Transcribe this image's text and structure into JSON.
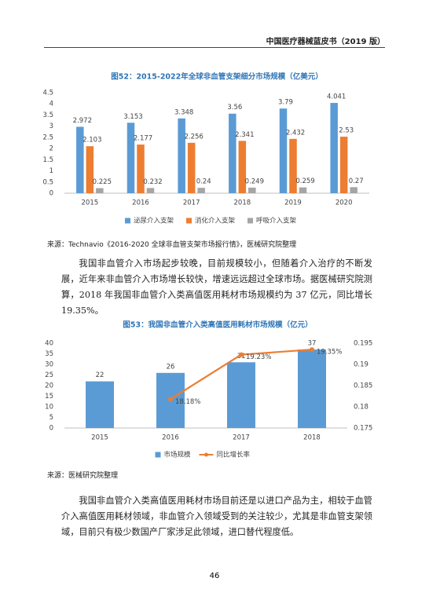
{
  "header": "中国医疗器械蓝皮书（2019 版）",
  "chart_data": [
    {
      "type": "bar",
      "title": "图52：2015-2022年全球非血管支架细分市场规模（亿美元）",
      "categories": [
        "2015",
        "2016",
        "2017",
        "2018",
        "2019",
        "2020"
      ],
      "series": [
        {
          "name": "泌尿介入支架",
          "color": "#5b9bd5",
          "values": [
            2.972,
            3.153,
            3.348,
            3.56,
            3.79,
            4.041
          ]
        },
        {
          "name": "消化介入支架",
          "color": "#ed7d31",
          "values": [
            2.103,
            2.177,
            2.256,
            2.341,
            2.432,
            2.53
          ]
        },
        {
          "name": "呼吸介入支架",
          "color": "#a5a5a5",
          "values": [
            0.225,
            0.232,
            0.24,
            0.249,
            0.259,
            0.27
          ]
        }
      ],
      "ylim": [
        0,
        4.5
      ],
      "yticks": [
        0,
        0.5,
        1,
        1.5,
        2,
        2.5,
        3,
        3.5,
        4,
        4.5
      ],
      "grid": false,
      "legend": "bottom"
    },
    {
      "type": "combo",
      "title": "图53：我国非血管介入类高值医用耗材市场规模（亿元）",
      "categories": [
        "2015",
        "2016",
        "2017",
        "2018"
      ],
      "series": [
        {
          "name": "市场规模",
          "color": "#5b9bd5",
          "values": [
            22,
            26,
            31,
            37
          ]
        },
        {
          "name": "同比增长率",
          "color": "#ed7d31",
          "axis": "y2",
          "values": [
            null,
            0.1818,
            0.1923,
            0.1935
          ],
          "value_labels": [
            null,
            "18.18%",
            "19.23%",
            "19.35%"
          ]
        }
      ],
      "ylim": [
        0,
        40
      ],
      "yticks": [
        0,
        5,
        10,
        15,
        20,
        25,
        30,
        35,
        40
      ],
      "y2lim": [
        0.175,
        0.195
      ],
      "y2ticks": [
        0.175,
        0.18,
        0.185,
        0.19,
        0.195
      ],
      "grid": false,
      "legend": "bottom"
    }
  ],
  "sources": [
    "来源：Technavio《2016-2020 全球非血管支架市场报行情》，医械研究院整理",
    "来源：医械研究院整理"
  ],
  "paragraphs": [
    "我国非血管介入市场起步较晚，目前规模较小，但随着介入治疗的不断发展，近年来非血管介入市场增长较快，增速远远超过全球市场。据医械研究院测算，2018 年我国非血管介入类高值医用耗材市场规模约为 37 亿元，同比增长 19.35%。",
    "我国非血管介入类高值医用耗材市场目前还是以进口产品为主，相较于血管介入高值医用耗材领域，非血管介入领域受到的关注较少，尤其是非血管支架领域，目前只有极少数国产厂家涉足此领域，进口替代程度低。"
  ],
  "page_number": "46"
}
